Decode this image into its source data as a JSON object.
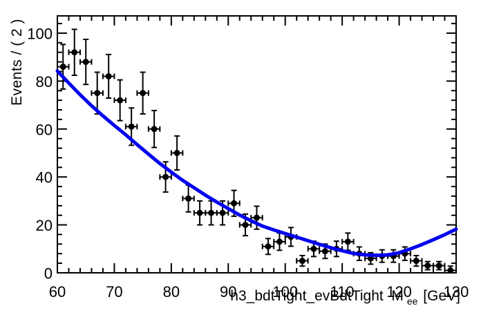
{
  "figure": {
    "background": "#ffffff",
    "frame_color": "#000000",
    "marker_color": "#000000",
    "curve_color": "#0000f0"
  },
  "axes": {
    "x": {
      "range": [
        60,
        130
      ],
      "major_ticks": [
        60,
        70,
        80,
        90,
        100,
        110,
        120,
        130
      ],
      "tick_labels": [
        "60",
        "70",
        "80",
        "90",
        "100",
        "110",
        "120",
        "130"
      ],
      "minor_step": 2,
      "title_main": "h3_bdtTight_evBdtTight  M",
      "title_sub": "ee",
      "title_unit": " [GeV]"
    },
    "y": {
      "range": [
        0,
        107.2
      ],
      "major_ticks": [
        0,
        20,
        40,
        60,
        80,
        100
      ],
      "tick_labels": [
        "0",
        "20",
        "40",
        "60",
        "80",
        "100"
      ],
      "minor_step": 4,
      "title": "Events / ( 2 )"
    }
  },
  "chart_data": {
    "type": "scatter",
    "title": "",
    "xlabel": "h3_bdtTight_evBdtTight M_{ee} [GeV]",
    "ylabel": "Events / ( 2 )",
    "xlim": [
      60,
      130
    ],
    "ylim": [
      0,
      107.2
    ],
    "bin_width_GeV": 2,
    "x_error": 1,
    "points_columns": [
      "mass_GeV",
      "events",
      "y_error"
    ],
    "points": [
      [
        61,
        86,
        9.3
      ],
      [
        63,
        92,
        9.6
      ],
      [
        65,
        88,
        9.4
      ],
      [
        67,
        75,
        8.7
      ],
      [
        69,
        82,
        9.1
      ],
      [
        71,
        72,
        8.5
      ],
      [
        73,
        61,
        7.8
      ],
      [
        75,
        75,
        8.7
      ],
      [
        77,
        60,
        7.7
      ],
      [
        79,
        40,
        6.3
      ],
      [
        81,
        50,
        7.1
      ],
      [
        83,
        31,
        5.6
      ],
      [
        85,
        25,
        5.0
      ],
      [
        87,
        25,
        5.0
      ],
      [
        89,
        25,
        5.0
      ],
      [
        91,
        29,
        5.4
      ],
      [
        93,
        20,
        4.5
      ],
      [
        95,
        23,
        4.8
      ],
      [
        97,
        11,
        3.3
      ],
      [
        99,
        13,
        3.6
      ],
      [
        101,
        15,
        3.9
      ],
      [
        103,
        5,
        2.2
      ],
      [
        105,
        10,
        3.2
      ],
      [
        107,
        9,
        3.0
      ],
      [
        109,
        10,
        3.2
      ],
      [
        111,
        13,
        3.6
      ],
      [
        113,
        8,
        2.8
      ],
      [
        115,
        6,
        2.4
      ],
      [
        117,
        7,
        2.6
      ],
      [
        119,
        7,
        2.6
      ],
      [
        121,
        8,
        2.8
      ],
      [
        123,
        5,
        2.2
      ],
      [
        125,
        3,
        1.7
      ],
      [
        127,
        3,
        1.7
      ],
      [
        129,
        1,
        1.8
      ]
    ],
    "fit_curve": {
      "name": "fit",
      "color": "#0000f0",
      "x": [
        60,
        62,
        64,
        66,
        68,
        70,
        72,
        74,
        76,
        78,
        80,
        82,
        84,
        86,
        88,
        90,
        92,
        94,
        96,
        98,
        100,
        102,
        104,
        106,
        108,
        110,
        112,
        114,
        116,
        118,
        120,
        122,
        124,
        126,
        128,
        130
      ],
      "y": [
        84.2,
        79.2,
        74.3,
        69.7,
        65.5,
        61.5,
        57.6,
        53.5,
        49.5,
        45.6,
        42.0,
        38.6,
        35.5,
        32.4,
        29.5,
        26.8,
        24.1,
        21.7,
        19.5,
        17.9,
        16.4,
        14.9,
        13.4,
        11.9,
        10.5,
        9.2,
        8.1,
        7.5,
        7.3,
        7.5,
        8.4,
        10.0,
        11.8,
        13.8,
        15.9,
        18.2
      ]
    },
    "legend": null,
    "grid": false
  }
}
